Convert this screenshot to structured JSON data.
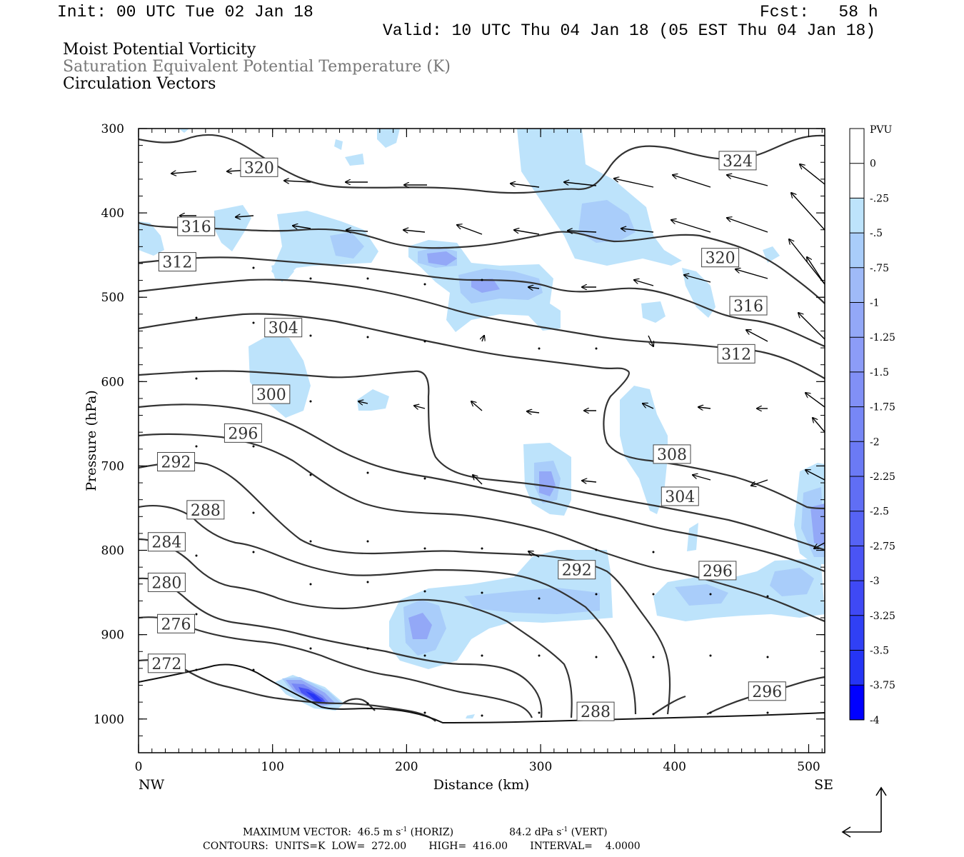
{
  "header": {
    "init": "Init: 00 UTC Tue 02 Jan 18",
    "fcst": "Fcst:   58 h",
    "valid": "Valid: 10 UTC Thu 04 Jan 18 (05 EST Thu 04 Jan 18)",
    "field1": "Moist Potential Vorticity",
    "field2": "Saturation Equivalent Potential Temperature (K)",
    "field3": "Circulation Vectors"
  },
  "footer": {
    "max_vector_label": "MAXIMUM VECTOR:",
    "horiz_value": "46.5 m s",
    "horiz_exp": "-1",
    "horiz_tag": " (HORIZ)",
    "vert_value": "84.2 dPa s",
    "vert_exp": "-1",
    "vert_tag": " (VERT)",
    "contours": "CONTOURS:  UNITS=K  LOW=  272.00       HIGH=  416.00       INTERVAL=    4.0000"
  },
  "colors": {
    "frame": "#000000",
    "contour": "#333333",
    "pv_levels": [
      "#ffffff",
      "#ffffff",
      "#bde3fb",
      "#a9cdfa",
      "#9fbaf8",
      "#93a8f7",
      "#8c9cf7",
      "#8190f6",
      "#7787f6",
      "#6b7af5",
      "#606ef5",
      "#5663f5",
      "#4a54f5",
      "#3f49f5",
      "#3040f5",
      "#2535f5",
      "#0000ff"
    ]
  },
  "chart_data": {
    "type": "contour",
    "xlabel": "Distance (km)",
    "ylabel": "Pressure (hPa)",
    "xlim": [
      0,
      512
    ],
    "ylim": [
      1040,
      300
    ],
    "x_ticks": [
      0,
      100,
      200,
      300,
      400,
      500
    ],
    "x_tick_labels": [
      "0",
      "100",
      "200",
      "300",
      "400",
      "500"
    ],
    "y_ticks": [
      300,
      400,
      500,
      600,
      700,
      800,
      900,
      1000
    ],
    "y_tick_labels": [
      "300",
      "400",
      "500",
      "600",
      "700",
      "800",
      "900",
      "1000"
    ],
    "left_endpoint_label": "NW",
    "right_endpoint_label": "SE",
    "colorbar": {
      "title": "PVU",
      "labels": [
        "0",
        "-.25",
        "-.5",
        "-.75",
        "-1",
        "-1.25",
        "-1.5",
        "-1.75",
        "-2",
        "-2.25",
        "-2.5",
        "-2.75",
        "-3",
        "-3.25",
        "-3.5",
        "-3.75",
        "-4"
      ]
    },
    "theta_e_labels": [
      {
        "text": "320",
        "x": 90,
        "p": 346
      },
      {
        "text": "324",
        "x": 447,
        "p": 338
      },
      {
        "text": "316",
        "x": 43,
        "p": 416
      },
      {
        "text": "320",
        "x": 434,
        "p": 453
      },
      {
        "text": "312",
        "x": 29,
        "p": 458
      },
      {
        "text": "316",
        "x": 455,
        "p": 510
      },
      {
        "text": "304",
        "x": 108,
        "p": 536
      },
      {
        "text": "312",
        "x": 446,
        "p": 567
      },
      {
        "text": "300",
        "x": 99,
        "p": 615
      },
      {
        "text": "296",
        "x": 78,
        "p": 661
      },
      {
        "text": "308",
        "x": 398,
        "p": 686
      },
      {
        "text": "292",
        "x": 28,
        "p": 695
      },
      {
        "text": "304",
        "x": 404,
        "p": 736
      },
      {
        "text": "288",
        "x": 50,
        "p": 752
      },
      {
        "text": "284",
        "x": 21,
        "p": 790
      },
      {
        "text": "292",
        "x": 327,
        "p": 823
      },
      {
        "text": "296",
        "x": 432,
        "p": 824
      },
      {
        "text": "280",
        "x": 21,
        "p": 838
      },
      {
        "text": "276",
        "x": 28,
        "p": 887
      },
      {
        "text": "272",
        "x": 21,
        "p": 934
      },
      {
        "text": "296",
        "x": 469,
        "p": 967
      },
      {
        "text": "288",
        "x": 341,
        "p": 991
      }
    ]
  }
}
